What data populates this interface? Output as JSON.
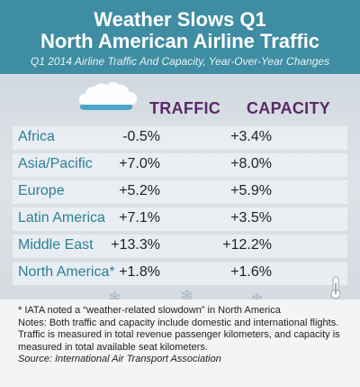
{
  "header": {
    "title_line1": "Weather Slows Q1",
    "title_line2": "North American Airline Traffic",
    "subtitle": "Q1 2014 Airline Traffic And Capacity, Year-Over-Year Changes"
  },
  "columns": {
    "traffic": "TRAFFIC",
    "capacity": "CAPACITY"
  },
  "rows": [
    {
      "region": "Africa",
      "traffic": "-0.5%",
      "capacity": "+3.4%"
    },
    {
      "region": "Asia/Pacific",
      "traffic": "+7.0%",
      "capacity": "+8.0%"
    },
    {
      "region": "Europe",
      "traffic": "+5.2%",
      "capacity": "+5.9%"
    },
    {
      "region": "Latin America",
      "traffic": "+7.1%",
      "capacity": "+3.5%"
    },
    {
      "region": "Middle East",
      "traffic": "+13.3%",
      "capacity": "+12.2%"
    },
    {
      "region": "North America*",
      "traffic": "+1.8%",
      "capacity": "+1.6%"
    }
  ],
  "notes": {
    "footnote": "* IATA noted a “weather-related slowdown” in North America",
    "notes": "Notes: Both traffic and capacity include domestic and international flights. Traffic is measured in total revenue passenger kilometers, and capacity is measured in total available seat kilometers.",
    "source": "Source: International Air Transport Association"
  },
  "icons": {
    "cloud": "cloud-icon",
    "thermometer": "thermometer-icon",
    "snowflake": "snowflake-icon"
  },
  "colors": {
    "header_bg": "#3e8da2",
    "column_heading": "#5a2a68",
    "region_text": "#2c7f95"
  }
}
